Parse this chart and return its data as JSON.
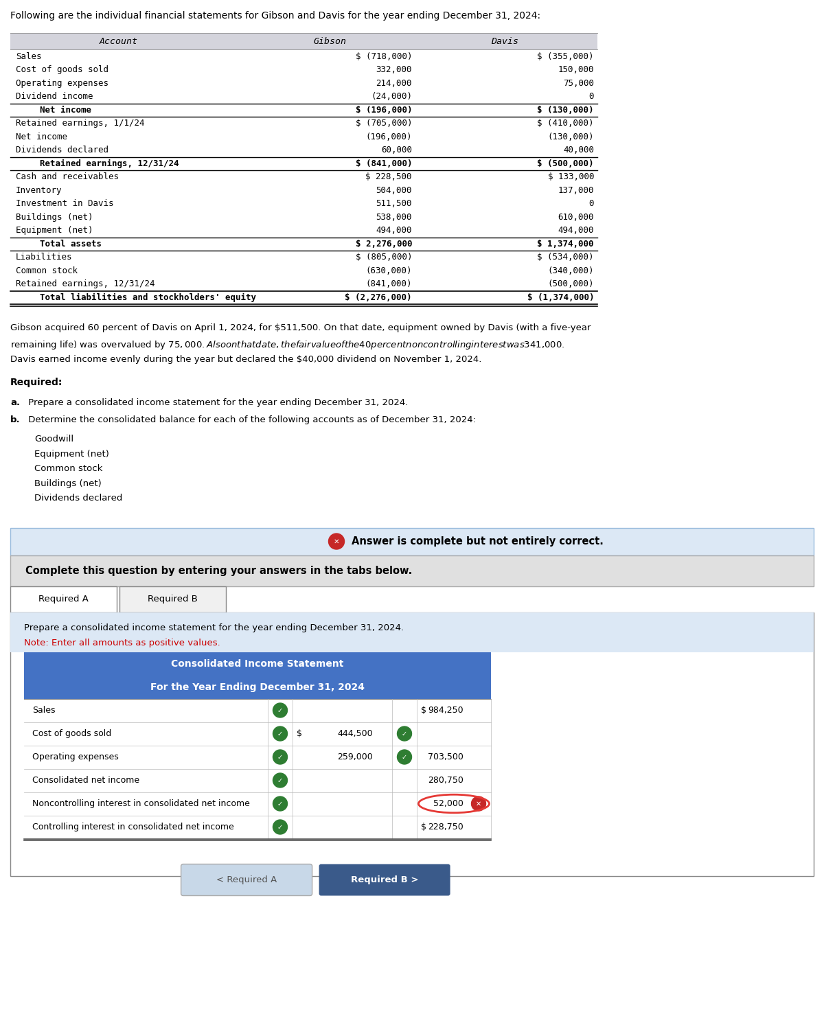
{
  "title": "Following are the individual financial statements for Gibson and Davis for the year ending December 31, 2024:",
  "table1_headers": [
    "Account",
    "Gibson",
    "Davis"
  ],
  "table1_rows": [
    [
      "Sales",
      "$ (718,000)",
      "$ (355,000)"
    ],
    [
      "Cost of goods sold",
      "332,000",
      "150,000"
    ],
    [
      "Operating expenses",
      "214,000",
      "75,000"
    ],
    [
      "Dividend income",
      "(24,000)",
      "0"
    ],
    [
      "  Net income",
      "$ (196,000)",
      "$ (130,000)"
    ],
    [
      "Retained earnings, 1/1/24",
      "$ (705,000)",
      "$ (410,000)"
    ],
    [
      "Net income",
      "(196,000)",
      "(130,000)"
    ],
    [
      "Dividends declared",
      "60,000",
      "40,000"
    ],
    [
      "  Retained earnings, 12/31/24",
      "$ (841,000)",
      "$ (500,000)"
    ],
    [
      "Cash and receivables",
      "$ 228,500",
      "$ 133,000"
    ],
    [
      "Inventory",
      "504,000",
      "137,000"
    ],
    [
      "Investment in Davis",
      "511,500",
      "0"
    ],
    [
      "Buildings (net)",
      "538,000",
      "610,000"
    ],
    [
      "Equipment (net)",
      "494,000",
      "494,000"
    ],
    [
      "  Total assets",
      "$ 2,276,000",
      "$ 1,374,000"
    ],
    [
      "Liabilities",
      "$ (805,000)",
      "$ (534,000)"
    ],
    [
      "Common stock",
      "(630,000)",
      "(340,000)"
    ],
    [
      "Retained earnings, 12/31/24",
      "(841,000)",
      "(500,000)"
    ],
    [
      "  Total liabilities and stockholders' equity",
      "$ (2,276,000)",
      "$ (1,374,000)"
    ]
  ],
  "separator_before_rows": [
    4,
    5,
    8,
    9,
    14,
    15,
    18,
    18
  ],
  "bold_rows": [
    4,
    8,
    14,
    18
  ],
  "narrative_lines": [
    "Gibson acquired 60 percent of Davis on April 1, 2024, for $511,500. On that date, equipment owned by Davis (with a five-year",
    "remaining life) was overvalued by $75,000. Also on that date, the fair value of the 40 percent noncontrolling interest was $341,000.",
    "Davis earned income evenly during the year but declared the $40,000 dividend on November 1, 2024."
  ],
  "required_label": "Required:",
  "required_a_bold": "a.",
  "required_a_rest": " Prepare a consolidated income statement for the year ending December 31, 2024.",
  "required_b_bold": "b.",
  "required_b_rest": " Determine the consolidated balance for each of the following accounts as of December 31, 2024:",
  "b_items": [
    "Goodwill",
    "Equipment (net)",
    "Common stock",
    "Buildings (net)",
    "Dividends declared"
  ],
  "complete_label": "Complete this question by entering your answers in the tabs below.",
  "tab1": "Required A",
  "tab2": "Required B",
  "tab_note": "Prepare a consolidated income statement for the year ending December 31, 2024.",
  "tab_note2": "Note: Enter all amounts as positive values.",
  "cons_title1": "Consolidated Income Statement",
  "cons_title2": "For the Year Ending December 31, 2024",
  "cons_rows": [
    {
      "label": "Sales",
      "col1": "",
      "col1_prefix": "",
      "col2": "984,250",
      "col2_prefix": "$",
      "check1": true,
      "has_col1_check": false,
      "incorrect2": false
    },
    {
      "label": "Cost of goods sold",
      "col1": "444,500",
      "col1_prefix": "$",
      "col2": "",
      "col2_prefix": "",
      "check1": true,
      "has_col1_check": true,
      "incorrect2": false
    },
    {
      "label": "Operating expenses",
      "col1": "259,000",
      "col1_prefix": "",
      "col2": "703,500",
      "col2_prefix": "",
      "check1": true,
      "has_col1_check": true,
      "incorrect2": false
    },
    {
      "label": "Consolidated net income",
      "col1": "",
      "col1_prefix": "",
      "col2": "280,750",
      "col2_prefix": "",
      "check1": true,
      "has_col1_check": false,
      "incorrect2": false
    },
    {
      "label": "Noncontrolling interest in consolidated net income",
      "col1": "",
      "col1_prefix": "",
      "col2": "52,000",
      "col2_prefix": "",
      "check1": true,
      "has_col1_check": false,
      "incorrect2": true
    },
    {
      "label": "Controlling interest in consolidated net income",
      "col1": "",
      "col1_prefix": "",
      "col2": "228,750",
      "col2_prefix": "$",
      "check1": true,
      "has_col1_check": false,
      "incorrect2": false
    }
  ],
  "btn1_label": "< Required A",
  "btn2_label": "Required B >",
  "bg_color": "#ffffff",
  "table_header_bg": "#d4d4dc",
  "answer_banner_bg": "#dce8f5",
  "answer_banner_border": "#99bbdd",
  "complete_bg": "#e0e0e0",
  "tab_content_bg": "#dce8f5",
  "cons_header_bg": "#4472c4",
  "cons_header_fg": "#ffffff",
  "check_color": "#2e7d32",
  "x_color": "#c62828",
  "ellipse_color": "#e53935",
  "btn1_bg": "#c8d8e8",
  "btn1_fg": "#555555",
  "btn2_bg": "#3a5a8a",
  "btn2_fg": "#ffffff",
  "tab_active_bg": "#ffffff",
  "tab_inactive_bg": "#f0f0f0"
}
